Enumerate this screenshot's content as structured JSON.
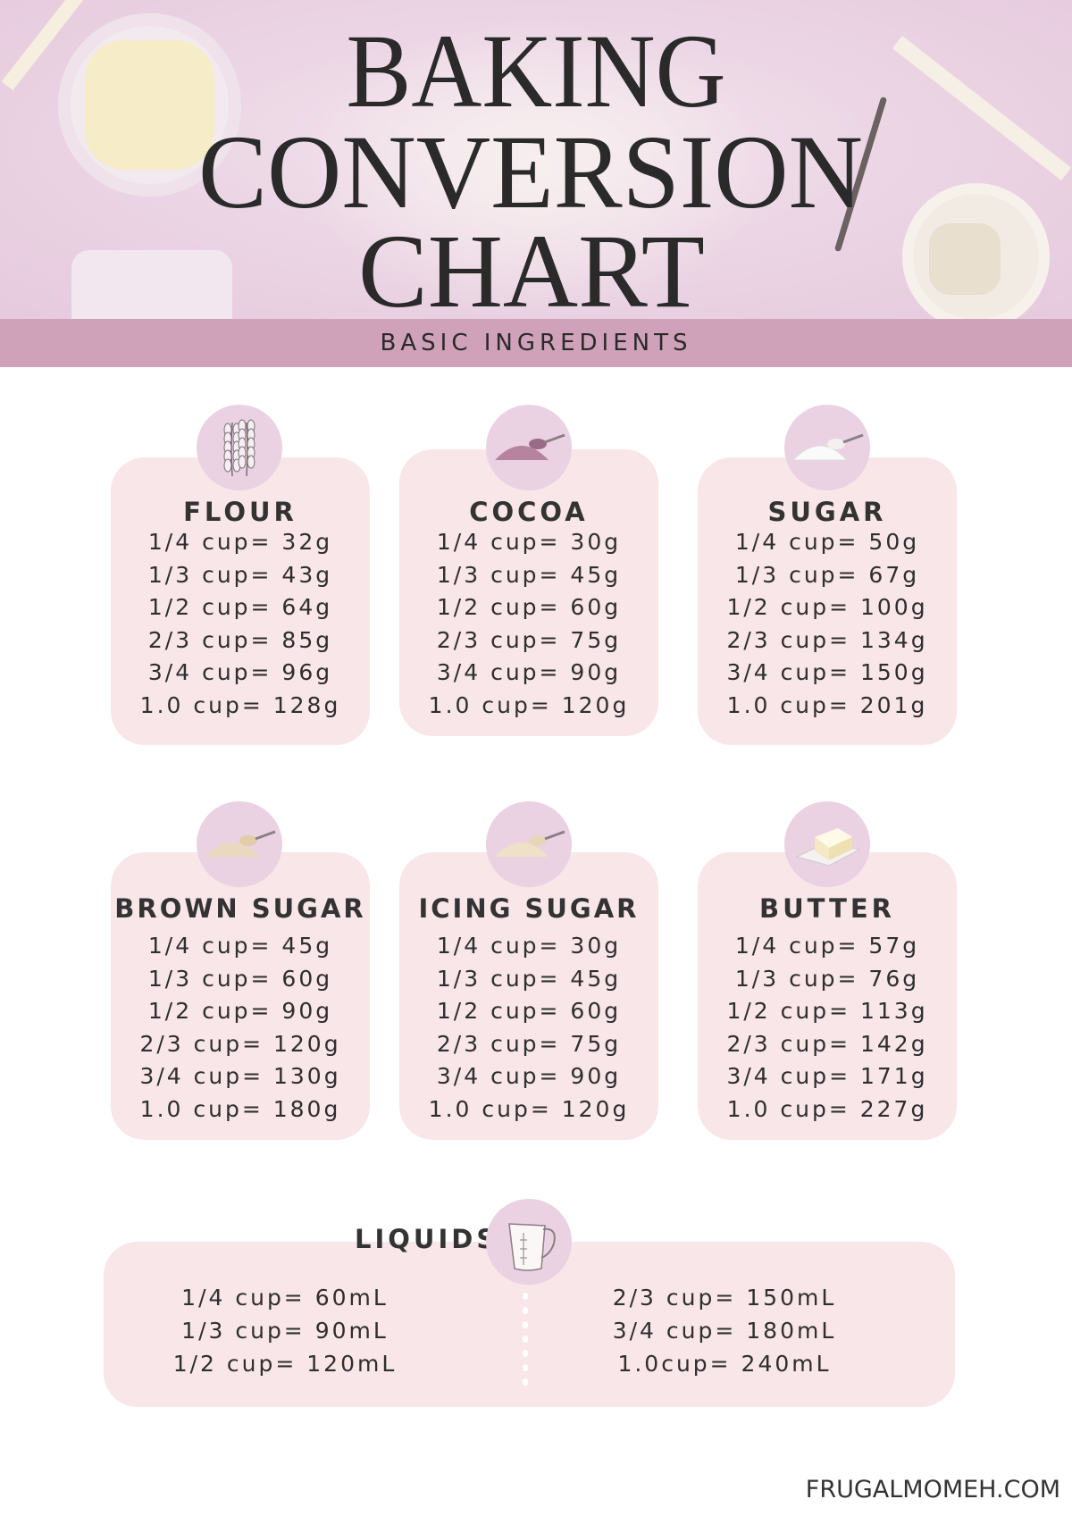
{
  "header": {
    "title_lines": [
      "BAKING",
      "CONVERSION",
      "CHART"
    ],
    "subtitle": "BASIC INGREDIENTS"
  },
  "colors": {
    "header_bg": "#ecd6e5",
    "band": "#cfa2b9",
    "card": "#f8e6e8",
    "icon_circle": "#ead2e3",
    "text": "#2f2f2f"
  },
  "cards": [
    {
      "title": "FLOUR",
      "icon": "wheat-icon",
      "rows": [
        "1/4 cup= 32g",
        "1/3 cup= 43g",
        "1/2 cup= 64g",
        "2/3 cup= 85g",
        "3/4 cup= 96g",
        "1.0 cup= 128g"
      ]
    },
    {
      "title": "COCOA",
      "icon": "cocoa-scoop-icon",
      "rows": [
        "1/4 cup= 30g",
        "1/3 cup= 45g",
        "1/2 cup= 60g",
        "2/3 cup= 75g",
        "3/4 cup= 90g",
        "1.0 cup= 120g"
      ]
    },
    {
      "title": "SUGAR",
      "icon": "sugar-scoop-icon",
      "rows": [
        "1/4 cup= 50g",
        "1/3 cup= 67g",
        "1/2 cup= 100g",
        "2/3 cup= 134g",
        "3/4 cup= 150g",
        "1.0 cup= 201g"
      ]
    },
    {
      "title": "BROWN SUGAR",
      "icon": "brown-sugar-scoop-icon",
      "rows": [
        "1/4 cup= 45g",
        "1/3 cup= 60g",
        "1/2 cup= 90g",
        "2/3 cup= 120g",
        "3/4 cup= 130g",
        "1.0 cup= 180g"
      ]
    },
    {
      "title": "ICING SUGAR",
      "icon": "icing-sugar-scoop-icon",
      "rows": [
        "1/4 cup= 30g",
        "1/3 cup= 45g",
        "1/2 cup= 60g",
        "2/3 cup= 75g",
        "3/4 cup= 90g",
        "1.0 cup= 120g"
      ]
    },
    {
      "title": "BUTTER",
      "icon": "butter-icon",
      "rows": [
        "1/4 cup= 57g",
        "1/3 cup= 76g",
        "1/2 cup= 113g",
        "2/3 cup= 142g",
        "3/4 cup= 171g",
        "1.0 cup= 227g"
      ]
    }
  ],
  "liquids": {
    "title": "LIQUIDS",
    "icon": "measuring-cup-icon",
    "left": [
      "1/4 cup= 60mL",
      "1/3 cup= 90mL",
      "1/2 cup= 120mL"
    ],
    "right": [
      "2/3 cup= 150mL",
      "3/4 cup= 180mL",
      "1.0cup= 240mL"
    ]
  },
  "footer": "FRUGALMOMEH.COM"
}
